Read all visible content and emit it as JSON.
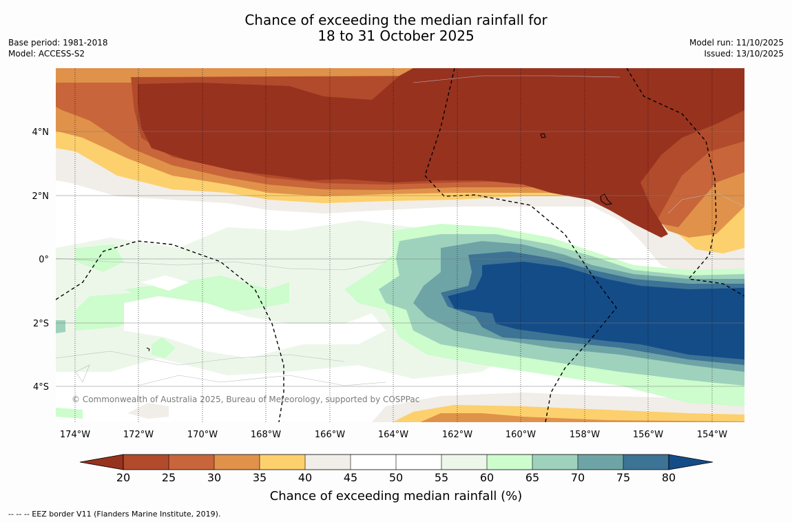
{
  "header": {
    "title_line1": "Chance of exceeding the median rainfall for",
    "title_line2": "18 to 31 October 2025",
    "base_period": "Base period: 1981-2018",
    "model": "Model: ACCESS-S2",
    "model_run": "Model run: 11/10/2025",
    "issued": "Issued: 13/10/2025"
  },
  "map": {
    "longitude_labels": [
      "174°W",
      "172°W",
      "170°W",
      "168°W",
      "166°W",
      "164°W",
      "162°W",
      "160°W",
      "158°W",
      "156°W",
      "154°W"
    ],
    "latitude_labels": [
      "4°N",
      "2°N",
      "0°",
      "2°S",
      "4°S"
    ],
    "copyright": "© Commonwealth of Australia 2025, Bureau of Meteorology, supported by COSPPac"
  },
  "colorbar": {
    "title": "Chance of exceeding median rainfall (%)",
    "tick_labels": [
      "20",
      "25",
      "30",
      "35",
      "40",
      "45",
      "50",
      "55",
      "60",
      "65",
      "70",
      "75",
      "80"
    ],
    "colors": [
      "#97321f",
      "#b14b2b",
      "#c8653a",
      "#e0924a",
      "#fdd06e",
      "#f1ede8",
      "#ffffff",
      "#ffffff",
      "#ecf7ea",
      "#cdfccd",
      "#9ed2bc",
      "#6ea4a6",
      "#3d7395",
      "#144c88"
    ]
  },
  "footer": {
    "legend_note": "--  --  -- EEZ border V11 (Flanders Marine Institute, 2019)."
  }
}
